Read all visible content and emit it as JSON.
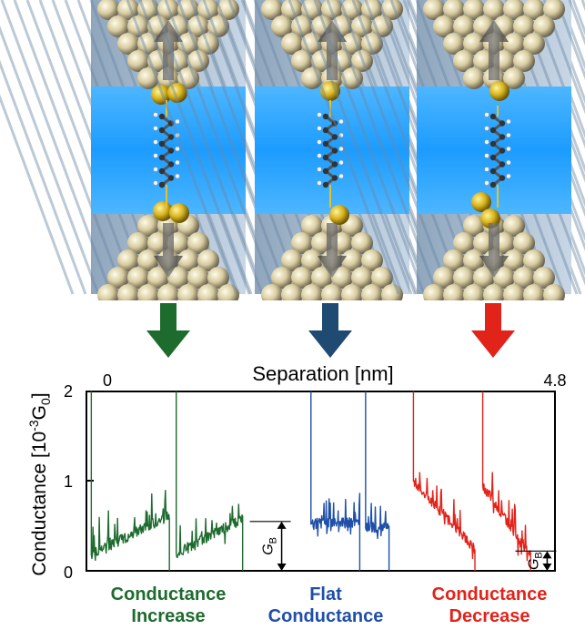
{
  "chart_data": {
    "type": "line",
    "xlabel": "Separation [nm]",
    "ylabel_main": "Conductance [10",
    "ylabel_sup": "-3",
    "ylabel_tail": "G",
    "ylabel_sub": "0",
    "ylabel_end": "]",
    "x_tick_start": "0",
    "x_tick_end": "4.8",
    "y_ticks": [
      "0",
      "1",
      "2"
    ],
    "xlim": [
      0,
      4.8
    ],
    "ylim": [
      0,
      2
    ],
    "gb_label": "G",
    "gb_sub": "B",
    "series": [
      {
        "key": "increase",
        "color": "#1e6b2e",
        "segments": [
          {
            "x0": 0.05,
            "x1": 0.85,
            "y0": 0.18,
            "y1": 0.62
          },
          {
            "x0": 0.92,
            "x1": 1.6,
            "y0": 0.2,
            "y1": 0.58
          }
        ]
      },
      {
        "key": "flat",
        "color": "#1f4fa8",
        "segments": [
          {
            "x0": 2.3,
            "x1": 2.8,
            "y0": 0.52,
            "y1": 0.54
          },
          {
            "x0": 2.86,
            "x1": 3.1,
            "y0": 0.48,
            "y1": 0.5
          }
        ]
      },
      {
        "key": "decrease",
        "color": "#e2231a",
        "segments": [
          {
            "x0": 3.35,
            "x1": 3.98,
            "y0": 1.0,
            "y1": 0.25
          },
          {
            "x0": 4.06,
            "x1": 4.55,
            "y0": 0.95,
            "y1": 0.18
          }
        ]
      }
    ],
    "gb_markers": [
      {
        "x": 2.0,
        "y": 0.55
      },
      {
        "x": 4.72,
        "y": 0.22
      }
    ]
  },
  "captions": {
    "increase": {
      "line1": "Conductance",
      "line2": "Increase",
      "color": "#1e6b2e"
    },
    "flat": {
      "line1": "Flat",
      "line2": "Conductance",
      "color": "#1f4fa8"
    },
    "decrease": {
      "line1": "Conductance",
      "line2": "Decrease",
      "color": "#e2231a"
    }
  },
  "arrows": [
    {
      "name": "increase",
      "color": "#1e6b2e"
    },
    {
      "name": "flat",
      "color": "#1f4a72"
    },
    {
      "name": "decrease",
      "color": "#e2231a"
    }
  ]
}
